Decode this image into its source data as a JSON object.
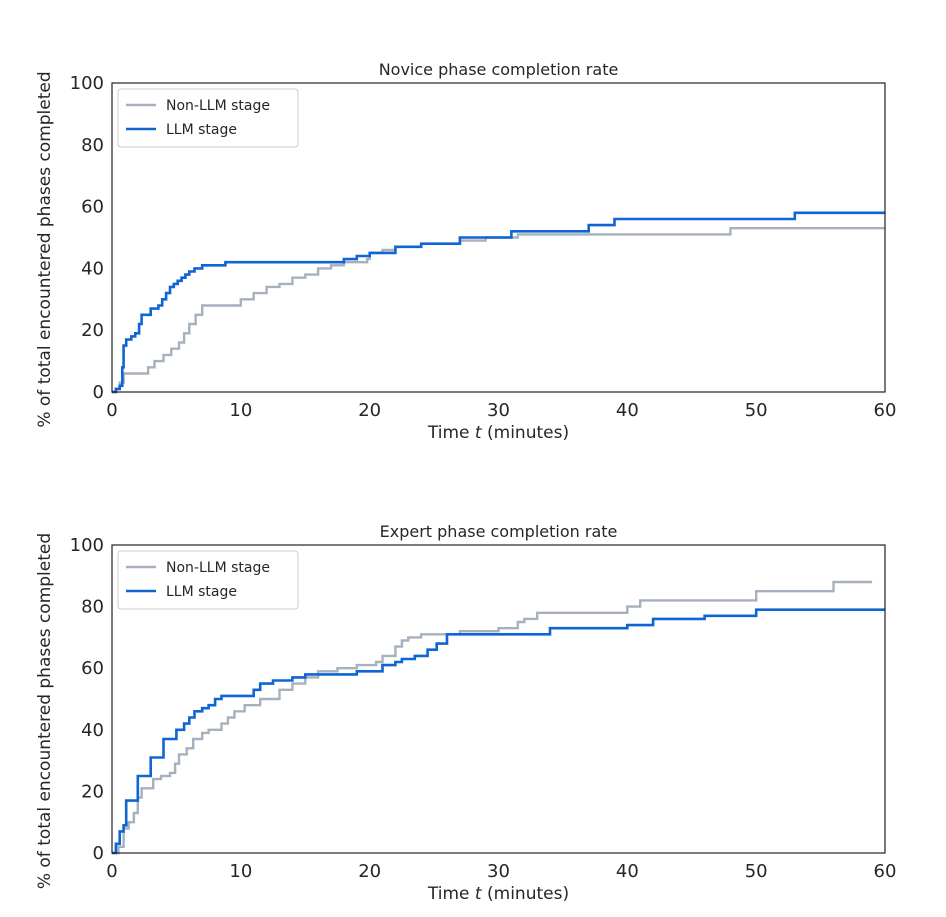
{
  "colors": {
    "non_llm": "#a7b0bd",
    "llm": "#1065d4",
    "axis": "#222222"
  },
  "chart_data": [
    {
      "type": "line",
      "title": "Novice phase completion rate",
      "xlabel": "Time t (minutes)",
      "xlabel_pre": "Time ",
      "xlabel_var": "t",
      "xlabel_post": " (minutes)",
      "ylabel": "% of total encountered phases completed",
      "xlim": [
        0,
        60
      ],
      "ylim": [
        0,
        100
      ],
      "xticks": [
        "0",
        "10",
        "20",
        "30",
        "40",
        "50",
        "60"
      ],
      "yticks": [
        "0",
        "20",
        "40",
        "60",
        "80",
        "100"
      ],
      "legend_position": "top-left",
      "series": [
        {
          "name": "Non-LLM stage",
          "step": true,
          "points": [
            [
              0,
              0
            ],
            [
              0.3,
              1
            ],
            [
              0.6,
              3
            ],
            [
              0.9,
              6
            ],
            [
              2.8,
              8
            ],
            [
              3.3,
              10
            ],
            [
              4,
              12
            ],
            [
              4.6,
              14
            ],
            [
              5.2,
              16
            ],
            [
              5.6,
              19
            ],
            [
              6,
              22
            ],
            [
              6.5,
              25
            ],
            [
              7,
              28
            ],
            [
              10,
              30
            ],
            [
              11,
              32
            ],
            [
              12,
              34
            ],
            [
              13,
              35
            ],
            [
              14,
              37
            ],
            [
              15,
              38
            ],
            [
              16,
              40
            ],
            [
              17,
              41
            ],
            [
              18,
              42
            ],
            [
              19.8,
              43
            ],
            [
              20,
              45
            ],
            [
              21,
              46
            ],
            [
              22,
              47
            ],
            [
              24,
              48
            ],
            [
              27,
              49
            ],
            [
              29,
              50
            ],
            [
              31.5,
              51
            ],
            [
              48,
              53
            ],
            [
              60,
              53
            ]
          ]
        },
        {
          "name": "LLM stage",
          "step": true,
          "points": [
            [
              0,
              0
            ],
            [
              0.3,
              1
            ],
            [
              0.6,
              2
            ],
            [
              0.8,
              8
            ],
            [
              0.9,
              15
            ],
            [
              1.1,
              17
            ],
            [
              1.5,
              18
            ],
            [
              1.8,
              19
            ],
            [
              2.1,
              22
            ],
            [
              2.3,
              25
            ],
            [
              3,
              27
            ],
            [
              3.6,
              28
            ],
            [
              3.9,
              30
            ],
            [
              4.2,
              32
            ],
            [
              4.5,
              34
            ],
            [
              4.8,
              35
            ],
            [
              5.1,
              36
            ],
            [
              5.4,
              37
            ],
            [
              5.7,
              38
            ],
            [
              6,
              39
            ],
            [
              6.4,
              40
            ],
            [
              7,
              41
            ],
            [
              8.8,
              42
            ],
            [
              18,
              43
            ],
            [
              19,
              44
            ],
            [
              20,
              45
            ],
            [
              22,
              47
            ],
            [
              24,
              48
            ],
            [
              27,
              50
            ],
            [
              31,
              52
            ],
            [
              37,
              54
            ],
            [
              39,
              56
            ],
            [
              53,
              58
            ],
            [
              60,
              58
            ]
          ]
        }
      ]
    },
    {
      "type": "line",
      "title": "Expert phase completion rate",
      "xlabel": "Time t (minutes)",
      "xlabel_pre": "Time ",
      "xlabel_var": "t",
      "xlabel_post": " (minutes)",
      "ylabel": "% of total encountered phases completed",
      "xlim": [
        0,
        60
      ],
      "ylim": [
        0,
        100
      ],
      "xticks": [
        "0",
        "10",
        "20",
        "30",
        "40",
        "50",
        "60"
      ],
      "yticks": [
        "0",
        "20",
        "40",
        "60",
        "80",
        "100"
      ],
      "legend_position": "top-left",
      "series": [
        {
          "name": "Non-LLM stage",
          "step": true,
          "points": [
            [
              0,
              0
            ],
            [
              0.5,
              2
            ],
            [
              0.9,
              8
            ],
            [
              1.3,
              10
            ],
            [
              1.7,
              13
            ],
            [
              2,
              18
            ],
            [
              2.3,
              21
            ],
            [
              3.2,
              24
            ],
            [
              3.8,
              25
            ],
            [
              4.5,
              26
            ],
            [
              4.9,
              29
            ],
            [
              5.2,
              32
            ],
            [
              5.8,
              34
            ],
            [
              6.3,
              37
            ],
            [
              7,
              39
            ],
            [
              7.5,
              40
            ],
            [
              8.5,
              42
            ],
            [
              9,
              44
            ],
            [
              9.5,
              46
            ],
            [
              10.3,
              48
            ],
            [
              11.5,
              50
            ],
            [
              13,
              53
            ],
            [
              14,
              55
            ],
            [
              15,
              57
            ],
            [
              16,
              59
            ],
            [
              17.5,
              60
            ],
            [
              19,
              61
            ],
            [
              20.5,
              62
            ],
            [
              21,
              64
            ],
            [
              22,
              67
            ],
            [
              22.5,
              69
            ],
            [
              23,
              70
            ],
            [
              24,
              71
            ],
            [
              27,
              72
            ],
            [
              30,
              73
            ],
            [
              31.5,
              75
            ],
            [
              32,
              76
            ],
            [
              33,
              78
            ],
            [
              40,
              80
            ],
            [
              41,
              82
            ],
            [
              50,
              85
            ],
            [
              56,
              88
            ],
            [
              59,
              88
            ]
          ]
        },
        {
          "name": "LLM stage",
          "step": true,
          "points": [
            [
              0,
              0
            ],
            [
              0.3,
              3
            ],
            [
              0.6,
              7
            ],
            [
              0.9,
              9
            ],
            [
              1.1,
              17
            ],
            [
              2,
              25
            ],
            [
              3,
              31
            ],
            [
              4,
              37
            ],
            [
              5,
              40
            ],
            [
              5.6,
              42
            ],
            [
              6,
              44
            ],
            [
              6.4,
              46
            ],
            [
              7,
              47
            ],
            [
              7.5,
              48
            ],
            [
              8,
              50
            ],
            [
              8.5,
              51
            ],
            [
              11,
              53
            ],
            [
              11.5,
              55
            ],
            [
              12.5,
              56
            ],
            [
              14,
              57
            ],
            [
              15,
              58
            ],
            [
              19,
              59
            ],
            [
              21,
              61
            ],
            [
              22,
              62
            ],
            [
              22.5,
              63
            ],
            [
              23.5,
              64
            ],
            [
              24.5,
              66
            ],
            [
              25.2,
              68
            ],
            [
              26,
              71
            ],
            [
              34,
              73
            ],
            [
              40,
              74
            ],
            [
              42,
              76
            ],
            [
              46,
              77
            ],
            [
              50,
              79
            ],
            [
              60,
              79
            ]
          ]
        }
      ]
    }
  ]
}
